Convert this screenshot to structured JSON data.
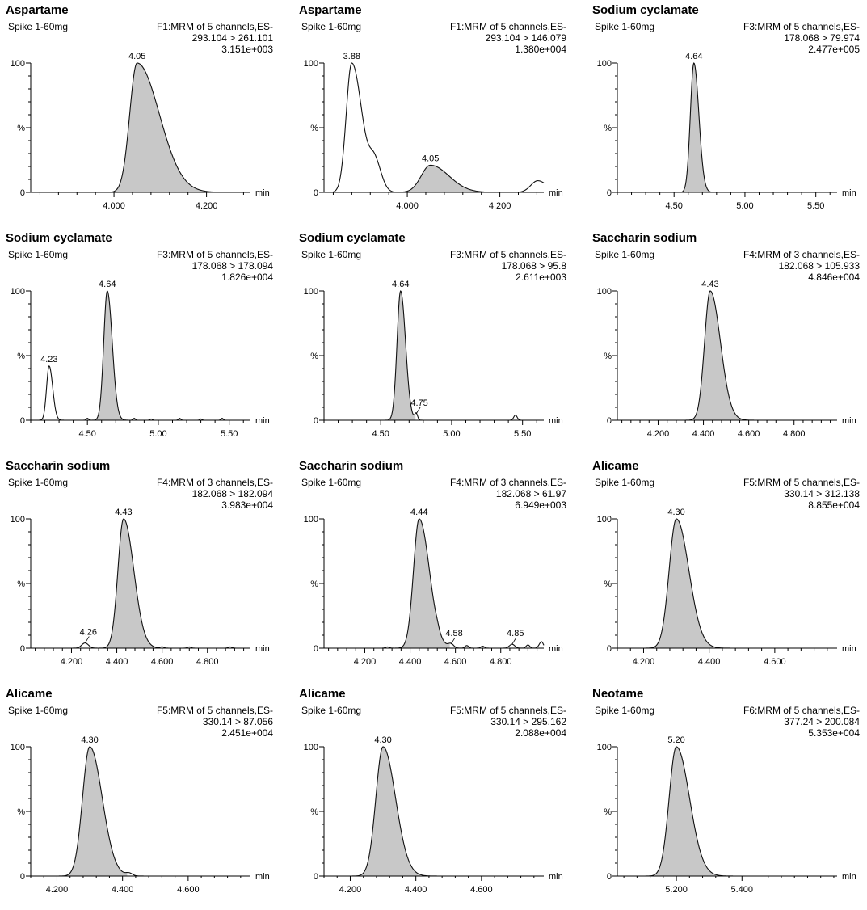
{
  "chart_data": [
    {
      "type": "line",
      "title": "Aspartame",
      "sample": "Spike 1-60mg",
      "function": "F1:MRM of 5 channels,ES-",
      "transition": "293.104 > 261.101",
      "intensity": "3.151e+003",
      "y_ticks": [
        "100",
        "%",
        "0"
      ],
      "xlabel": "min",
      "xlim": [
        3.82,
        4.295
      ],
      "x_ticks": [
        "4.000",
        "4.200"
      ],
      "peaks": [
        {
          "rt": 4.05,
          "label": "4.05",
          "height": 100,
          "width_left": 0.016,
          "width_right": 0.048,
          "filled": true
        }
      ],
      "noise": []
    },
    {
      "type": "line",
      "title": "Aspartame",
      "sample": "Spike 1-60mg",
      "function": "F1:MRM of 5 channels,ES-",
      "transition": "293.104 > 146.079",
      "intensity": "1.380e+004",
      "y_ticks": [
        "100",
        "%",
        "0"
      ],
      "xlabel": "min",
      "xlim": [
        3.82,
        4.295
      ],
      "x_ticks": [
        "4.000",
        "4.200"
      ],
      "peaks": [
        {
          "rt": 3.88,
          "label": "3.88",
          "height": 100,
          "width_left": 0.012,
          "width_right": 0.022,
          "filled": false
        },
        {
          "rt": 3.93,
          "label": "",
          "height": 22,
          "width_left": 0.012,
          "width_right": 0.014,
          "filled": false
        },
        {
          "rt": 4.05,
          "label": "4.05",
          "height": 21,
          "width_left": 0.02,
          "width_right": 0.04,
          "filled": true
        },
        {
          "rt": 4.282,
          "label": "",
          "height": 9,
          "width_left": 0.015,
          "width_right": 0.02,
          "filled": false
        }
      ],
      "noise": []
    },
    {
      "type": "line",
      "title": "Sodium cyclamate",
      "sample": "Spike 1-60mg",
      "function": "F3:MRM of 5 channels,ES-",
      "transition": "178.068 > 79.974",
      "intensity": "2.477e+005",
      "y_ticks": [
        "100",
        "%",
        "0"
      ],
      "xlabel": "min",
      "xlim": [
        4.1,
        5.65
      ],
      "x_ticks": [
        "4.50",
        "5.00",
        "5.50"
      ],
      "peaks": [
        {
          "rt": 4.64,
          "label": "4.64",
          "height": 100,
          "width_left": 0.025,
          "width_right": 0.035,
          "filled": true
        }
      ],
      "noise": []
    },
    {
      "type": "line",
      "title": "Sodium cyclamate",
      "sample": "Spike 1-60mg",
      "function": "F3:MRM of 5 channels,ES-",
      "transition": "178.068 > 178.094",
      "intensity": "1.826e+004",
      "y_ticks": [
        "100",
        "%",
        "0"
      ],
      "xlabel": "min",
      "xlim": [
        4.1,
        5.65
      ],
      "x_ticks": [
        "4.50",
        "5.00",
        "5.50"
      ],
      "peaks": [
        {
          "rt": 4.23,
          "label": "4.23",
          "height": 42,
          "width_left": 0.018,
          "width_right": 0.025,
          "filled": false
        },
        {
          "rt": 4.64,
          "label": "4.64",
          "height": 100,
          "width_left": 0.025,
          "width_right": 0.035,
          "filled": true
        }
      ],
      "noise": [
        [
          4.5,
          1.5
        ],
        [
          4.83,
          1.5
        ],
        [
          4.95,
          1
        ],
        [
          5.15,
          1.5
        ],
        [
          5.3,
          1
        ],
        [
          5.45,
          1.5
        ]
      ]
    },
    {
      "type": "line",
      "title": "Sodium cyclamate",
      "sample": "Spike 1-60mg",
      "function": "F3:MRM of 5 channels,ES-",
      "transition": "178.068 > 95.8",
      "intensity": "2.611e+003",
      "y_ticks": [
        "100",
        "%",
        "0"
      ],
      "xlabel": "min",
      "xlim": [
        4.1,
        5.65
      ],
      "x_ticks": [
        "4.50",
        "5.00",
        "5.50"
      ],
      "peaks": [
        {
          "rt": 4.64,
          "label": "4.64",
          "height": 100,
          "width_left": 0.025,
          "width_right": 0.035,
          "filled": true
        },
        {
          "rt": 4.75,
          "label": "4.75",
          "height": 5,
          "width_left": 0.01,
          "width_right": 0.01,
          "filled": false
        },
        {
          "rt": 5.45,
          "label": "",
          "height": 4,
          "width_left": 0.012,
          "width_right": 0.012,
          "filled": false
        }
      ],
      "noise": []
    },
    {
      "type": "line",
      "title": "Saccharin sodium",
      "sample": "Spike 1-60mg",
      "function": "F4:MRM of 3 channels,ES-",
      "transition": "182.068 > 105.933",
      "intensity": "4.846e+004",
      "y_ticks": [
        "100",
        "%",
        "0"
      ],
      "xlabel": "min",
      "xlim": [
        4.02,
        4.99
      ],
      "x_ticks": [
        "4.200",
        "4.400",
        "4.600",
        "4.800"
      ],
      "peaks": [
        {
          "rt": 4.43,
          "label": "4.43",
          "height": 100,
          "width_left": 0.025,
          "width_right": 0.045,
          "filled": true
        }
      ],
      "noise": []
    },
    {
      "type": "line",
      "title": "Saccharin sodium",
      "sample": "Spike 1-60mg",
      "function": "F4:MRM of 3 channels,ES-",
      "transition": "182.068 > 182.094",
      "intensity": "3.983e+004",
      "y_ticks": [
        "100",
        "%",
        "0"
      ],
      "xlabel": "min",
      "xlim": [
        4.02,
        4.99
      ],
      "x_ticks": [
        "4.200",
        "4.400",
        "4.600",
        "4.800"
      ],
      "peaks": [
        {
          "rt": 4.26,
          "label": "4.26",
          "height": 4,
          "width_left": 0.015,
          "width_right": 0.015,
          "filled": false
        },
        {
          "rt": 4.43,
          "label": "4.43",
          "height": 100,
          "width_left": 0.025,
          "width_right": 0.045,
          "filled": true
        }
      ],
      "noise": [
        [
          4.6,
          1
        ],
        [
          4.72,
          1
        ],
        [
          4.9,
          1
        ]
      ]
    },
    {
      "type": "line",
      "title": "Saccharin sodium",
      "sample": "Spike 1-60mg",
      "function": "F4:MRM of 3 channels,ES-",
      "transition": "182.068 > 61.97",
      "intensity": "6.949e+003",
      "y_ticks": [
        "100",
        "%",
        "0"
      ],
      "xlabel": "min",
      "xlim": [
        4.02,
        4.99
      ],
      "x_ticks": [
        "4.200",
        "4.400",
        "4.600",
        "4.800"
      ],
      "peaks": [
        {
          "rt": 4.44,
          "label": "4.44",
          "height": 100,
          "width_left": 0.025,
          "width_right": 0.045,
          "filled": true
        },
        {
          "rt": 4.58,
          "label": "4.58",
          "height": 3,
          "width_left": 0.012,
          "width_right": 0.012,
          "filled": false
        },
        {
          "rt": 4.85,
          "label": "4.85",
          "height": 3,
          "width_left": 0.012,
          "width_right": 0.012,
          "filled": false
        },
        {
          "rt": 4.98,
          "label": "",
          "height": 5,
          "width_left": 0.01,
          "width_right": 0.008,
          "filled": false
        }
      ],
      "noise": [
        [
          4.3,
          1
        ],
        [
          4.52,
          1.5
        ],
        [
          4.65,
          2
        ],
        [
          4.72,
          1.5
        ],
        [
          4.92,
          2.5
        ]
      ]
    },
    {
      "type": "line",
      "title": "Alicame",
      "sample": "Spike 1-60mg",
      "function": "F5:MRM of 5 channels,ES-",
      "transition": "330.14 > 312.138",
      "intensity": "8.855e+004",
      "y_ticks": [
        "100",
        "%",
        "0"
      ],
      "xlabel": "min",
      "xlim": [
        4.12,
        4.79
      ],
      "x_ticks": [
        "4.200",
        "4.400",
        "4.600"
      ],
      "peaks": [
        {
          "rt": 4.3,
          "label": "4.30",
          "height": 100,
          "width_left": 0.022,
          "width_right": 0.038,
          "filled": true
        }
      ],
      "noise": []
    },
    {
      "type": "line",
      "title": "Alicame",
      "sample": "Spike 1-60mg",
      "function": "F5:MRM of 5 channels,ES-",
      "transition": "330.14 > 87.056",
      "intensity": "2.451e+004",
      "y_ticks": [
        "100",
        "%",
        "0"
      ],
      "xlabel": "min",
      "xlim": [
        4.12,
        4.79
      ],
      "x_ticks": [
        "4.200",
        "4.400",
        "4.600"
      ],
      "peaks": [
        {
          "rt": 4.3,
          "label": "4.30",
          "height": 100,
          "width_left": 0.022,
          "width_right": 0.038,
          "filled": true
        },
        {
          "rt": 4.42,
          "label": "",
          "height": 2,
          "width_left": 0.01,
          "width_right": 0.01,
          "filled": false
        }
      ],
      "noise": []
    },
    {
      "type": "line",
      "title": "Alicame",
      "sample": "Spike 1-60mg",
      "function": "F5:MRM of 5 channels,ES-",
      "transition": "330.14 > 295.162",
      "intensity": "2.088e+004",
      "y_ticks": [
        "100",
        "%",
        "0"
      ],
      "xlabel": "min",
      "xlim": [
        4.12,
        4.79
      ],
      "x_ticks": [
        "4.200",
        "4.400",
        "4.600"
      ],
      "peaks": [
        {
          "rt": 4.3,
          "label": "4.30",
          "height": 100,
          "width_left": 0.022,
          "width_right": 0.038,
          "filled": true
        }
      ],
      "noise": []
    },
    {
      "type": "line",
      "title": "Neotame",
      "sample": "Spike 1-60mg",
      "function": "F6:MRM of 5 channels,ES-",
      "transition": "377.24 > 200.084",
      "intensity": "5.353e+004",
      "y_ticks": [
        "100",
        "%",
        "0"
      ],
      "xlabel": "min",
      "xlim": [
        5.02,
        5.69
      ],
      "x_ticks": [
        "5.200",
        "5.400"
      ],
      "peaks": [
        {
          "rt": 5.2,
          "label": "5.20",
          "height": 100,
          "width_left": 0.022,
          "width_right": 0.04,
          "filled": true
        }
      ],
      "noise": []
    }
  ]
}
